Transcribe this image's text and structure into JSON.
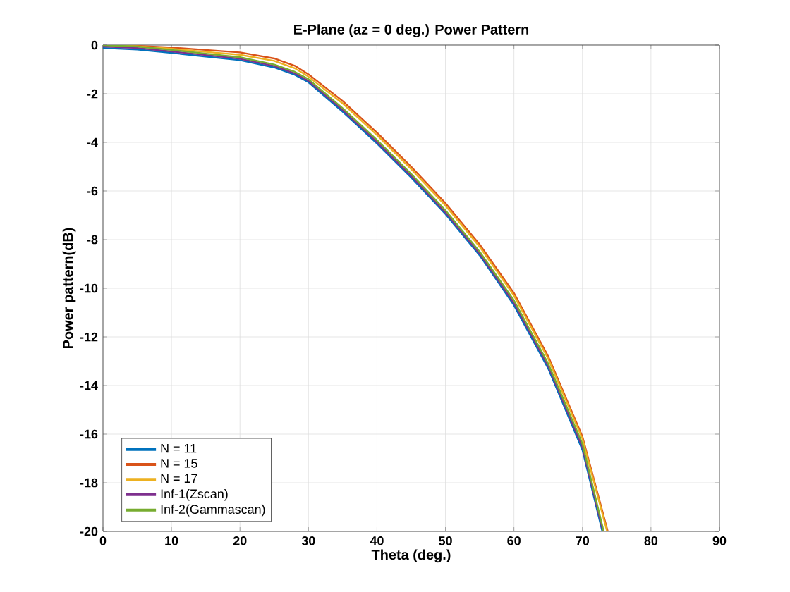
{
  "chart_data": {
    "type": "line",
    "title": "E-Plane (az = 0 deg.) Power Pattern",
    "xlabel": "Theta (deg.)",
    "ylabel": "Power pattern(dB)",
    "xlim": [
      0,
      90
    ],
    "xticks": [
      0,
      10,
      20,
      30,
      40,
      50,
      60,
      70,
      80,
      90
    ],
    "ylim": [
      -20,
      0
    ],
    "yticks": [
      -20,
      -18,
      -16,
      -14,
      -12,
      -10,
      -8,
      -6,
      -4,
      -2,
      0
    ],
    "grid": true,
    "legend": "bottom left",
    "marker": "none",
    "line_style": "solid",
    "series": [
      {
        "name": "N = 11",
        "color": "#0072bd",
        "x": [
          0,
          5,
          10,
          15,
          20,
          25,
          28,
          30,
          35,
          40,
          45,
          50,
          55,
          60,
          65,
          70,
          72.9
        ],
        "values": [
          -0.12,
          -0.18,
          -0.32,
          -0.47,
          -0.62,
          -0.92,
          -1.22,
          -1.53,
          -2.74,
          -4.05,
          -5.45,
          -6.95,
          -8.65,
          -10.7,
          -13.3,
          -16.65,
          -20
        ]
      },
      {
        "name": "N = 15",
        "color": "#d95319",
        "x": [
          0,
          5,
          10,
          15,
          20,
          25,
          28,
          30,
          35,
          40,
          45,
          50,
          55,
          60,
          65,
          70,
          73.7
        ],
        "values": [
          0,
          -0.03,
          -0.1,
          -0.2,
          -0.3,
          -0.55,
          -0.85,
          -1.2,
          -2.3,
          -3.6,
          -5.0,
          -6.5,
          -8.2,
          -10.2,
          -12.8,
          -16.1,
          -20
        ]
      },
      {
        "name": "N = 17",
        "color": "#edb120",
        "x": [
          0,
          5,
          10,
          15,
          20,
          25,
          28,
          30,
          35,
          40,
          45,
          50,
          55,
          60,
          65,
          70,
          73.6
        ],
        "values": [
          0,
          -0.05,
          -0.15,
          -0.28,
          -0.4,
          -0.65,
          -0.95,
          -1.3,
          -2.4,
          -3.7,
          -5.1,
          -6.6,
          -8.3,
          -10.3,
          -12.9,
          -16.2,
          -20
        ]
      },
      {
        "name": "Inf-1(Zscan)",
        "color": "#7e2f8e",
        "x": [
          0,
          5,
          10,
          15,
          20,
          25,
          28,
          30,
          35,
          40,
          45,
          50,
          55,
          60,
          65,
          70,
          73.0
        ],
        "values": [
          -0.06,
          -0.12,
          -0.26,
          -0.41,
          -0.56,
          -0.86,
          -1.16,
          -1.47,
          -2.67,
          -3.98,
          -5.38,
          -6.88,
          -8.58,
          -10.6,
          -13.2,
          -16.53,
          -20
        ]
      },
      {
        "name": "Inf-2(Gammascan)",
        "color": "#77ac30",
        "x": [
          0,
          5,
          10,
          15,
          20,
          25,
          28,
          30,
          35,
          40,
          45,
          50,
          55,
          60,
          65,
          70,
          73.1
        ],
        "values": [
          0,
          -0.06,
          -0.2,
          -0.35,
          -0.5,
          -0.8,
          -1.1,
          -1.4,
          -2.6,
          -3.9,
          -5.3,
          -6.8,
          -8.5,
          -10.5,
          -13.1,
          -16.4,
          -20
        ]
      }
    ]
  }
}
